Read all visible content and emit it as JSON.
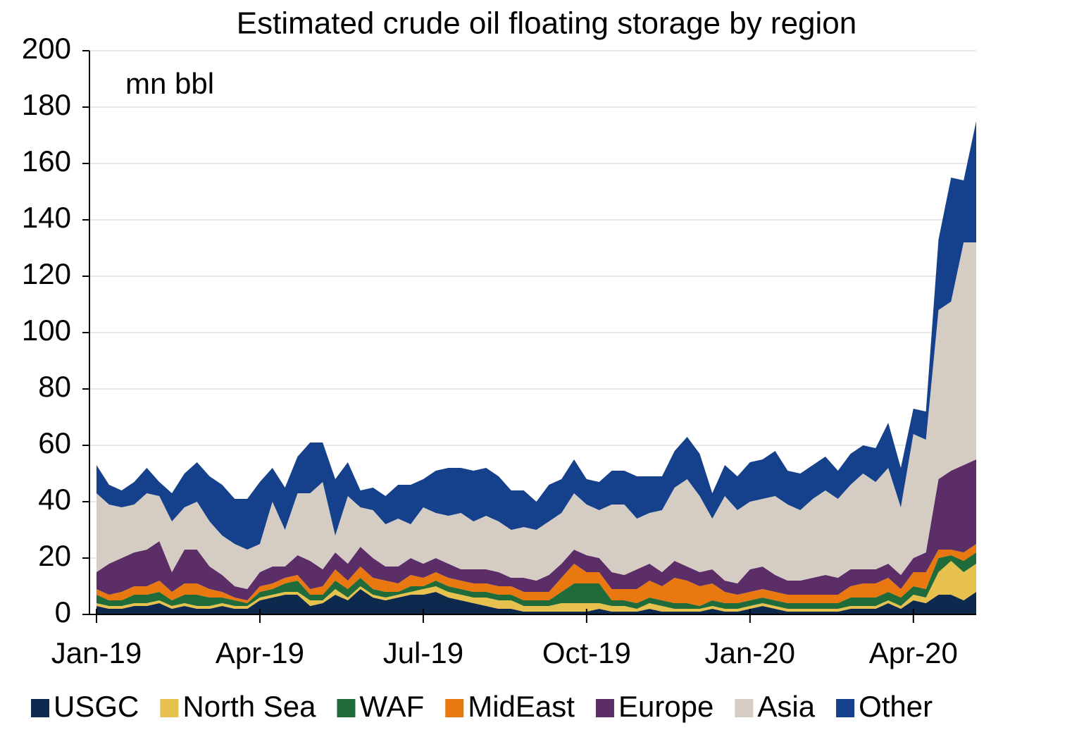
{
  "chart_data": {
    "type": "stacked_area",
    "title": "Estimated crude oil floating storage by region",
    "y_label": "mn bbl",
    "x": [
      0,
      1,
      2,
      3,
      4,
      5,
      6,
      7,
      8,
      9,
      10,
      11,
      12,
      13,
      14,
      15,
      16,
      17,
      18,
      19,
      20,
      21,
      22,
      23,
      24,
      25,
      26,
      27,
      28,
      29,
      30,
      31,
      32,
      33,
      34,
      35,
      36,
      37,
      38,
      39,
      40,
      41,
      42,
      43,
      44,
      45,
      46,
      47,
      48,
      49,
      50,
      51,
      52,
      53,
      54,
      55,
      56,
      57,
      58,
      59,
      60,
      61,
      62,
      63,
      64,
      65,
      66,
      67,
      68,
      69,
      70
    ],
    "xlim": [
      0,
      70
    ],
    "xticks": [
      {
        "value": 0,
        "label": "Jan-19"
      },
      {
        "value": 13,
        "label": "Apr-19"
      },
      {
        "value": 26,
        "label": "Jul-19"
      },
      {
        "value": 39,
        "label": "Oct-19"
      },
      {
        "value": 52,
        "label": "Jan-20"
      },
      {
        "value": 65,
        "label": "Apr-20"
      }
    ],
    "ylim": [
      0,
      200
    ],
    "yticks": [
      0,
      20,
      40,
      60,
      80,
      100,
      120,
      140,
      160,
      180,
      200
    ],
    "grid": true,
    "legend": "bottom",
    "series": [
      {
        "name": "USGC",
        "color": "#0d2a4e",
        "values": [
          3,
          2,
          2,
          3,
          3,
          4,
          2,
          3,
          2,
          2,
          3,
          2,
          2,
          5,
          6,
          7,
          7,
          3,
          4,
          7,
          5,
          9,
          6,
          5,
          6,
          7,
          7,
          8,
          6,
          5,
          4,
          3,
          2,
          2,
          1,
          1,
          1,
          1,
          1,
          1,
          2,
          1,
          1,
          1,
          2,
          1,
          1,
          1,
          1,
          2,
          1,
          1,
          2,
          3,
          2,
          1,
          1,
          1,
          1,
          1,
          2,
          2,
          2,
          4,
          2,
          5,
          4,
          7,
          7,
          5,
          8
        ]
      },
      {
        "name": "North Sea",
        "color": "#e6c14d",
        "values": [
          1,
          1,
          1,
          1,
          1,
          1,
          1,
          1,
          1,
          1,
          1,
          1,
          1,
          1,
          1,
          1,
          1,
          2,
          1,
          2,
          1,
          1,
          1,
          1,
          1,
          1,
          2,
          2,
          2,
          2,
          2,
          3,
          3,
          3,
          2,
          2,
          2,
          3,
          3,
          3,
          2,
          2,
          2,
          1,
          2,
          2,
          1,
          1,
          1,
          1,
          1,
          1,
          1,
          1,
          1,
          1,
          1,
          1,
          1,
          1,
          1,
          1,
          1,
          1,
          1,
          2,
          2,
          8,
          12,
          10,
          10
        ]
      },
      {
        "name": "WAF",
        "color": "#1f6b3a",
        "values": [
          3,
          2,
          2,
          3,
          3,
          3,
          2,
          3,
          4,
          3,
          2,
          2,
          1,
          2,
          2,
          3,
          4,
          2,
          2,
          3,
          3,
          3,
          2,
          2,
          1,
          2,
          1,
          2,
          2,
          2,
          2,
          2,
          2,
          2,
          2,
          2,
          2,
          4,
          7,
          7,
          7,
          2,
          2,
          2,
          2,
          2,
          2,
          2,
          1,
          2,
          2,
          2,
          2,
          2,
          2,
          2,
          2,
          2,
          2,
          2,
          3,
          3,
          3,
          3,
          3,
          3,
          3,
          5,
          2,
          4,
          4
        ]
      },
      {
        "name": "MidEast",
        "color": "#e8780f",
        "values": [
          2,
          2,
          3,
          3,
          3,
          4,
          3,
          4,
          4,
          3,
          2,
          1,
          1,
          2,
          2,
          2,
          2,
          2,
          3,
          4,
          3,
          4,
          4,
          4,
          3,
          4,
          3,
          3,
          3,
          3,
          3,
          3,
          3,
          3,
          3,
          3,
          3,
          5,
          7,
          4,
          4,
          4,
          4,
          5,
          6,
          5,
          9,
          8,
          7,
          6,
          4,
          3,
          3,
          3,
          3,
          3,
          3,
          3,
          3,
          3,
          4,
          5,
          5,
          5,
          3,
          5,
          6,
          3,
          2,
          3,
          3
        ]
      },
      {
        "name": "Europe",
        "color": "#5b2e68",
        "values": [
          6,
          11,
          12,
          12,
          13,
          14,
          7,
          12,
          12,
          8,
          6,
          4,
          4,
          5,
          6,
          4,
          7,
          10,
          6,
          6,
          6,
          7,
          7,
          5,
          6,
          6,
          5,
          5,
          5,
          4,
          5,
          5,
          5,
          3,
          5,
          4,
          6,
          5,
          5,
          6,
          5,
          6,
          5,
          7,
          6,
          5,
          6,
          5,
          5,
          5,
          4,
          4,
          8,
          8,
          6,
          5,
          5,
          6,
          7,
          6,
          6,
          5,
          5,
          5,
          5,
          5,
          7,
          25,
          28,
          31,
          30
        ]
      },
      {
        "name": "Asia",
        "color": "#d5cdc4",
        "values": [
          28,
          21,
          18,
          17,
          20,
          16,
          18,
          15,
          17,
          16,
          14,
          15,
          14,
          10,
          23,
          13,
          22,
          24,
          31,
          6,
          24,
          14,
          17,
          15,
          17,
          12,
          20,
          16,
          17,
          20,
          17,
          19,
          18,
          17,
          18,
          18,
          19,
          18,
          20,
          18,
          17,
          24,
          25,
          18,
          18,
          22,
          26,
          31,
          27,
          18,
          30,
          26,
          24,
          24,
          28,
          27,
          25,
          28,
          30,
          28,
          30,
          34,
          31,
          34,
          24,
          44,
          40,
          60,
          60,
          79,
          77
        ]
      },
      {
        "name": "Other",
        "color": "#15408c",
        "values": [
          10,
          7,
          6,
          8,
          9,
          5,
          10,
          12,
          14,
          16,
          18,
          16,
          18,
          22,
          12,
          15,
          13,
          18,
          14,
          20,
          12,
          6,
          8,
          10,
          12,
          14,
          10,
          15,
          17,
          16,
          18,
          17,
          16,
          14,
          13,
          10,
          13,
          12,
          12,
          9,
          10,
          12,
          12,
          15,
          13,
          12,
          13,
          15,
          15,
          9,
          11,
          12,
          14,
          14,
          16,
          12,
          13,
          12,
          12,
          10,
          11,
          10,
          12,
          16,
          14,
          9,
          10,
          25,
          44,
          22,
          43
        ]
      }
    ]
  }
}
